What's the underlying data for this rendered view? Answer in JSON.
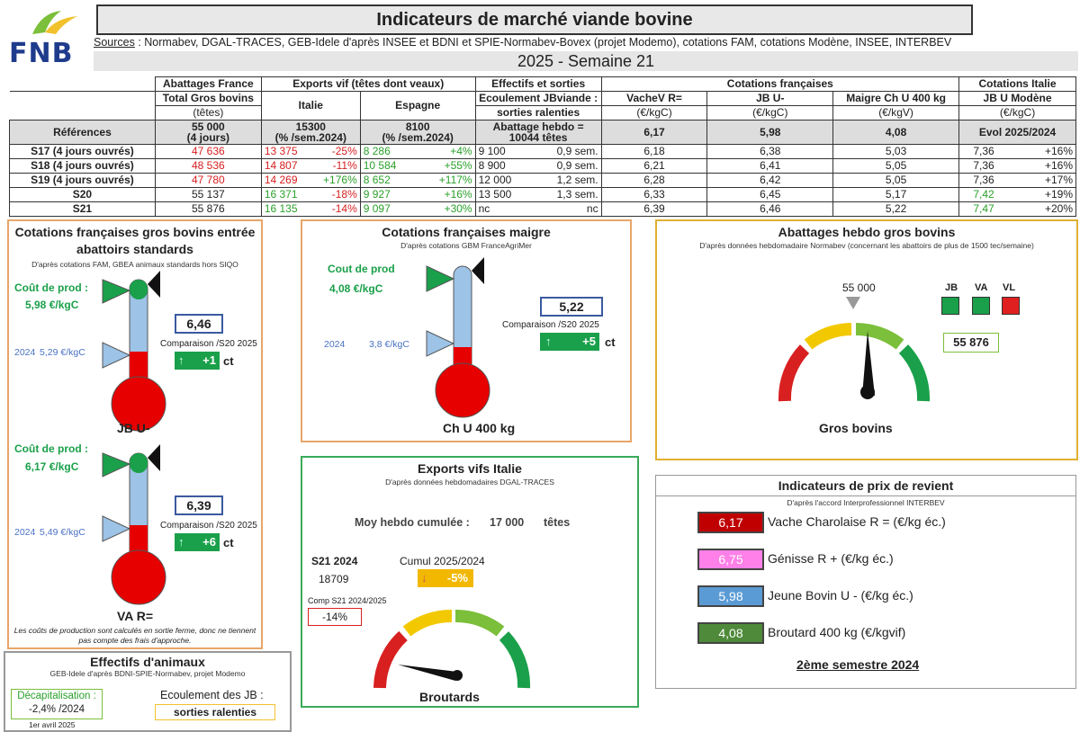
{
  "header": {
    "logo": "FNB",
    "title": "Indicateurs de marché viande bovine",
    "sources_label": "Sources",
    "sources_text": " : Normabev, DGAL-TRACES, GEB-Idele d'après INSEE et BDNI et SPIE-Normabev-Bovex (projet Modemo), cotations FAM, cotations Modène, INSEE, INTERBEV",
    "week": "2025 - Semaine 21"
  },
  "table": {
    "h1": [
      "Abattages France",
      "Exports vif (têtes dont veaux)",
      "Effectifs et sorties",
      "Cotations françaises",
      "Cotations Italie"
    ],
    "h2": [
      "Total Gros bovins",
      "Italie",
      "Espagne",
      "Ecoulement JBviande :",
      "VacheV R=",
      "JB U-",
      "Maigre Ch U 400 kg",
      "JB U Modène"
    ],
    "h3": [
      "(têtes)",
      "sorties ralenties",
      "(€/kgC)",
      "(€/kgC)",
      "(€/kgV)",
      "(€/kgC)"
    ],
    "ref_label": "Références",
    "ref_abattages": "55 000",
    "ref_abattages2": "(4 jours)",
    "ref_italie": "15300",
    "ref_italie2": "(% /sem.2024)",
    "ref_espagne": "8100",
    "ref_espagne2": "(% /sem.2024)",
    "ref_eff": "Abattage hebdo =",
    "ref_eff2": "10044 têtes",
    "ref_vache": "6,17",
    "ref_jb": "5,98",
    "ref_maigre": "4,08",
    "ref_italie_cot": "Evol 2025/2024",
    "rows": [
      {
        "label": "S17 (4 jours ouvrés)",
        "abat": "47 636",
        "it": "13 375",
        "itp": "-25%",
        "es": "8 286",
        "esp": "+4%",
        "eff": "9 100",
        "effs": "0,9 sem.",
        "vache": "6,18",
        "jb": "6,38",
        "maigre": "5,03",
        "mod": "7,36",
        "modp": "+16%"
      },
      {
        "label": "S18 (4 jours ouvrés)",
        "abat": "48 536",
        "it": "14 807",
        "itp": "-11%",
        "es": "10 584",
        "esp": "+55%",
        "eff": "8 900",
        "effs": "0,9 sem.",
        "vache": "6,21",
        "jb": "6,41",
        "maigre": "5,05",
        "mod": "7,36",
        "modp": "+16%"
      },
      {
        "label": "S19 (4 jours ouvrés)",
        "abat": "47 780",
        "it": "14 269",
        "itp": "+176%",
        "es": "8 652",
        "esp": "+117%",
        "eff": "12 000",
        "effs": "1,2 sem.",
        "vache": "6,28",
        "jb": "6,42",
        "maigre": "5,05",
        "mod": "7,36",
        "modp": "+17%"
      },
      {
        "label": "S20",
        "abat": "55 137",
        "it": "16 371",
        "itp": "-18%",
        "es": "9 927",
        "esp": "+16%",
        "eff": "13 500",
        "effs": "1,3 sem.",
        "vache": "6,33",
        "jb": "6,45",
        "maigre": "5,17",
        "mod": "7,42",
        "modp": "+19%"
      },
      {
        "label": "S21",
        "abat": "55 876",
        "it": "16 135",
        "itp": "-14%",
        "es": "9 097",
        "esp": "+30%",
        "eff": "nc",
        "effs": "nc",
        "vache": "6,39",
        "jb": "6,46",
        "maigre": "5,22",
        "mod": "7,47",
        "modp": "+20%"
      }
    ]
  },
  "gros_bovins": {
    "title": "Cotations françaises gros bovins entrée abattoirs standards",
    "sub": "D'après cotations FAM, GBEA animaux standards hors SIQO",
    "jb": {
      "cout_label": "Coût de prod :",
      "cout_val": "5,98 €/kgC",
      "y2024": "2024",
      "v2024": "5,29 €/kgC",
      "value": "6,46",
      "comp": "Comparaison /S20 2025",
      "arrow": "↑",
      "delta": "+1",
      "unit": "ct",
      "name": "JB U-"
    },
    "va": {
      "cout_label": "Coût de prod :",
      "cout_val": "6,17 €/kgC",
      "y2024": "2024",
      "v2024": "5,49 €/kgC",
      "value": "6,39",
      "comp": "Comparaison /S20 2025",
      "arrow": "↑",
      "delta": "+6",
      "unit": "ct",
      "name": "VA R="
    },
    "note": "Les coûts de production sont calculés en sortie ferme, donc ne tiennent pas compte des frais d'approche."
  },
  "maigre": {
    "title": "Cotations françaises maigre",
    "sub": "D'après cotations GBM FranceAgriMer",
    "cout_label": "Cout de prod",
    "cout_val": "4,08 €/kgC",
    "y2024": "2024",
    "v2024": "3,8 €/kgC",
    "value": "5,22",
    "comp": "Comparaison /S20 2025",
    "arrow": "↑",
    "delta": "+5",
    "unit": "ct",
    "name": "Ch U 400 kg"
  },
  "abattages": {
    "title": "Abattages hebdo gros bovins",
    "sub": "D'après données hebdomadaire Normabev (concernant les abattoirs de plus de 1500 tec/semaine)",
    "ref": "55 000",
    "labels": [
      "JB",
      "VA",
      "VL"
    ],
    "colors": [
      "#1aa04a",
      "#1aa04a",
      "#e02020"
    ],
    "value": "55 876",
    "gauge_label": "Gros bovins"
  },
  "exports": {
    "title": "Exports vifs  Italie",
    "sub": "D'après données hebdomadaires DGAL-TRACES",
    "moy_label": "Moy hebdo cumulée :",
    "moy_val": "17 000",
    "moy_unit": "têtes",
    "s21_label": "S21 2024",
    "s21_val": "18709",
    "cumul_label": "Cumul 2025/2024",
    "cumul_arrow": "↓",
    "cumul_val": "-5%",
    "comp_label": "Comp S21 2024/2025",
    "comp_val": "-14%",
    "gauge_label": "Broutards"
  },
  "effectifs": {
    "title": "Effectifs d'animaux",
    "sub": "GEB-Idele d'après BDNI-SPIE-Normabev, projet Modemo",
    "decap_label": "Décapitalisation :",
    "decap_val": "-2,4% /2024",
    "date": "1er avril 2025",
    "ecoul_label": "Ecoulement des JB :",
    "ecoul_val": "sorties ralenties"
  },
  "revient": {
    "title": "Indicateurs de prix de revient",
    "sub": "D'après l'accord Interprofessionnel INTERBEV",
    "items": [
      {
        "value": "6,17",
        "label": "Vache Charolaise R = (€/kg éc.)",
        "color": "#c00000"
      },
      {
        "value": "6,75",
        "label": "Génisse R + (€/kg éc.)",
        "color": "#ff80e8"
      },
      {
        "value": "5,98",
        "label": "Jeune Bovin U - (€/kg éc.)",
        "color": "#5b9bd5"
      },
      {
        "value": "4,08",
        "label": "Broutard 400 kg (€/kgvif)",
        "color": "#4e8a3a"
      }
    ],
    "period": "2ème semestre 2024"
  }
}
